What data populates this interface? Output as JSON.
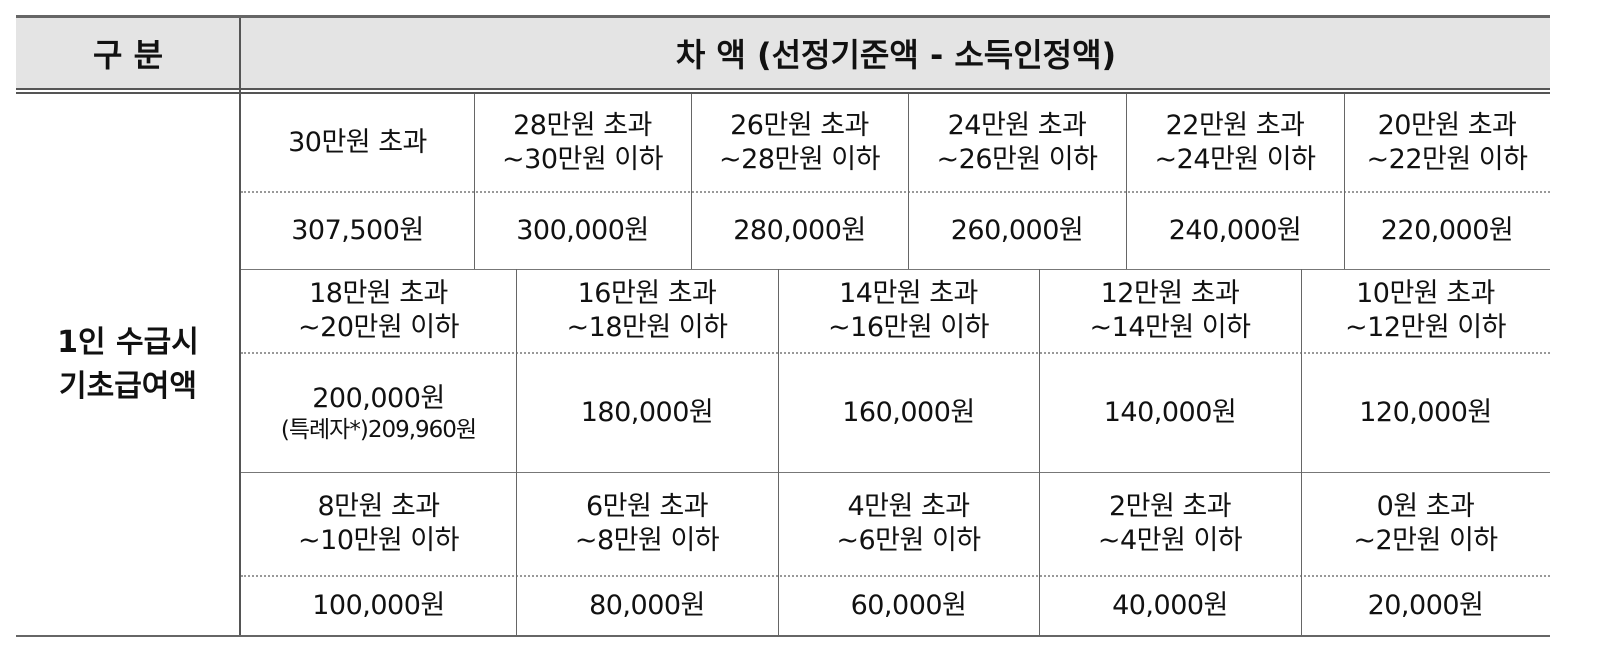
{
  "header": {
    "category_label": "구 분",
    "difference_label": "차 액 (선정기준액 - 소득인정액)"
  },
  "row_label": [
    "1인 수급시",
    "기초급여액"
  ],
  "tiers": [
    {
      "ranges": [
        [
          "30만원 초과"
        ],
        [
          "28만원 초과",
          "~30만원 이하"
        ],
        [
          "26만원 초과",
          "~28만원 이하"
        ],
        [
          "24만원 초과",
          "~26만원 이하"
        ],
        [
          "22만원 초과",
          "~24만원 이하"
        ],
        [
          "20만원 초과",
          "~22만원 이하"
        ]
      ],
      "amounts": [
        [
          "307,500원"
        ],
        [
          "300,000원"
        ],
        [
          "280,000원"
        ],
        [
          "260,000원"
        ],
        [
          "240,000원"
        ],
        [
          "220,000원"
        ]
      ]
    },
    {
      "ranges": [
        [
          "18만원 초과",
          "~20만원 이하"
        ],
        [
          "16만원 초과",
          "~18만원 이하"
        ],
        [
          "14만원 초과",
          "~16만원 이하"
        ],
        [
          "12만원 초과",
          "~14만원 이하"
        ],
        [
          "10만원 초과",
          "~12만원 이하"
        ]
      ],
      "amounts": [
        [
          "200,000원",
          "(특례자*)209,960원"
        ],
        [
          "180,000원"
        ],
        [
          "160,000원"
        ],
        [
          "140,000원"
        ],
        [
          "120,000원"
        ]
      ]
    },
    {
      "ranges": [
        [
          "8만원 초과",
          "~10만원 이하"
        ],
        [
          "6만원 초과",
          "~8만원 이하"
        ],
        [
          "4만원 초과",
          "~6만원 이하"
        ],
        [
          "2만원 초과",
          "~4만원 이하"
        ],
        [
          "0원 초과",
          "~2만원 이하"
        ]
      ],
      "amounts": [
        [
          "100,000원"
        ],
        [
          "80,000원"
        ],
        [
          "60,000원"
        ],
        [
          "40,000원"
        ],
        [
          "20,000원"
        ]
      ]
    }
  ]
}
